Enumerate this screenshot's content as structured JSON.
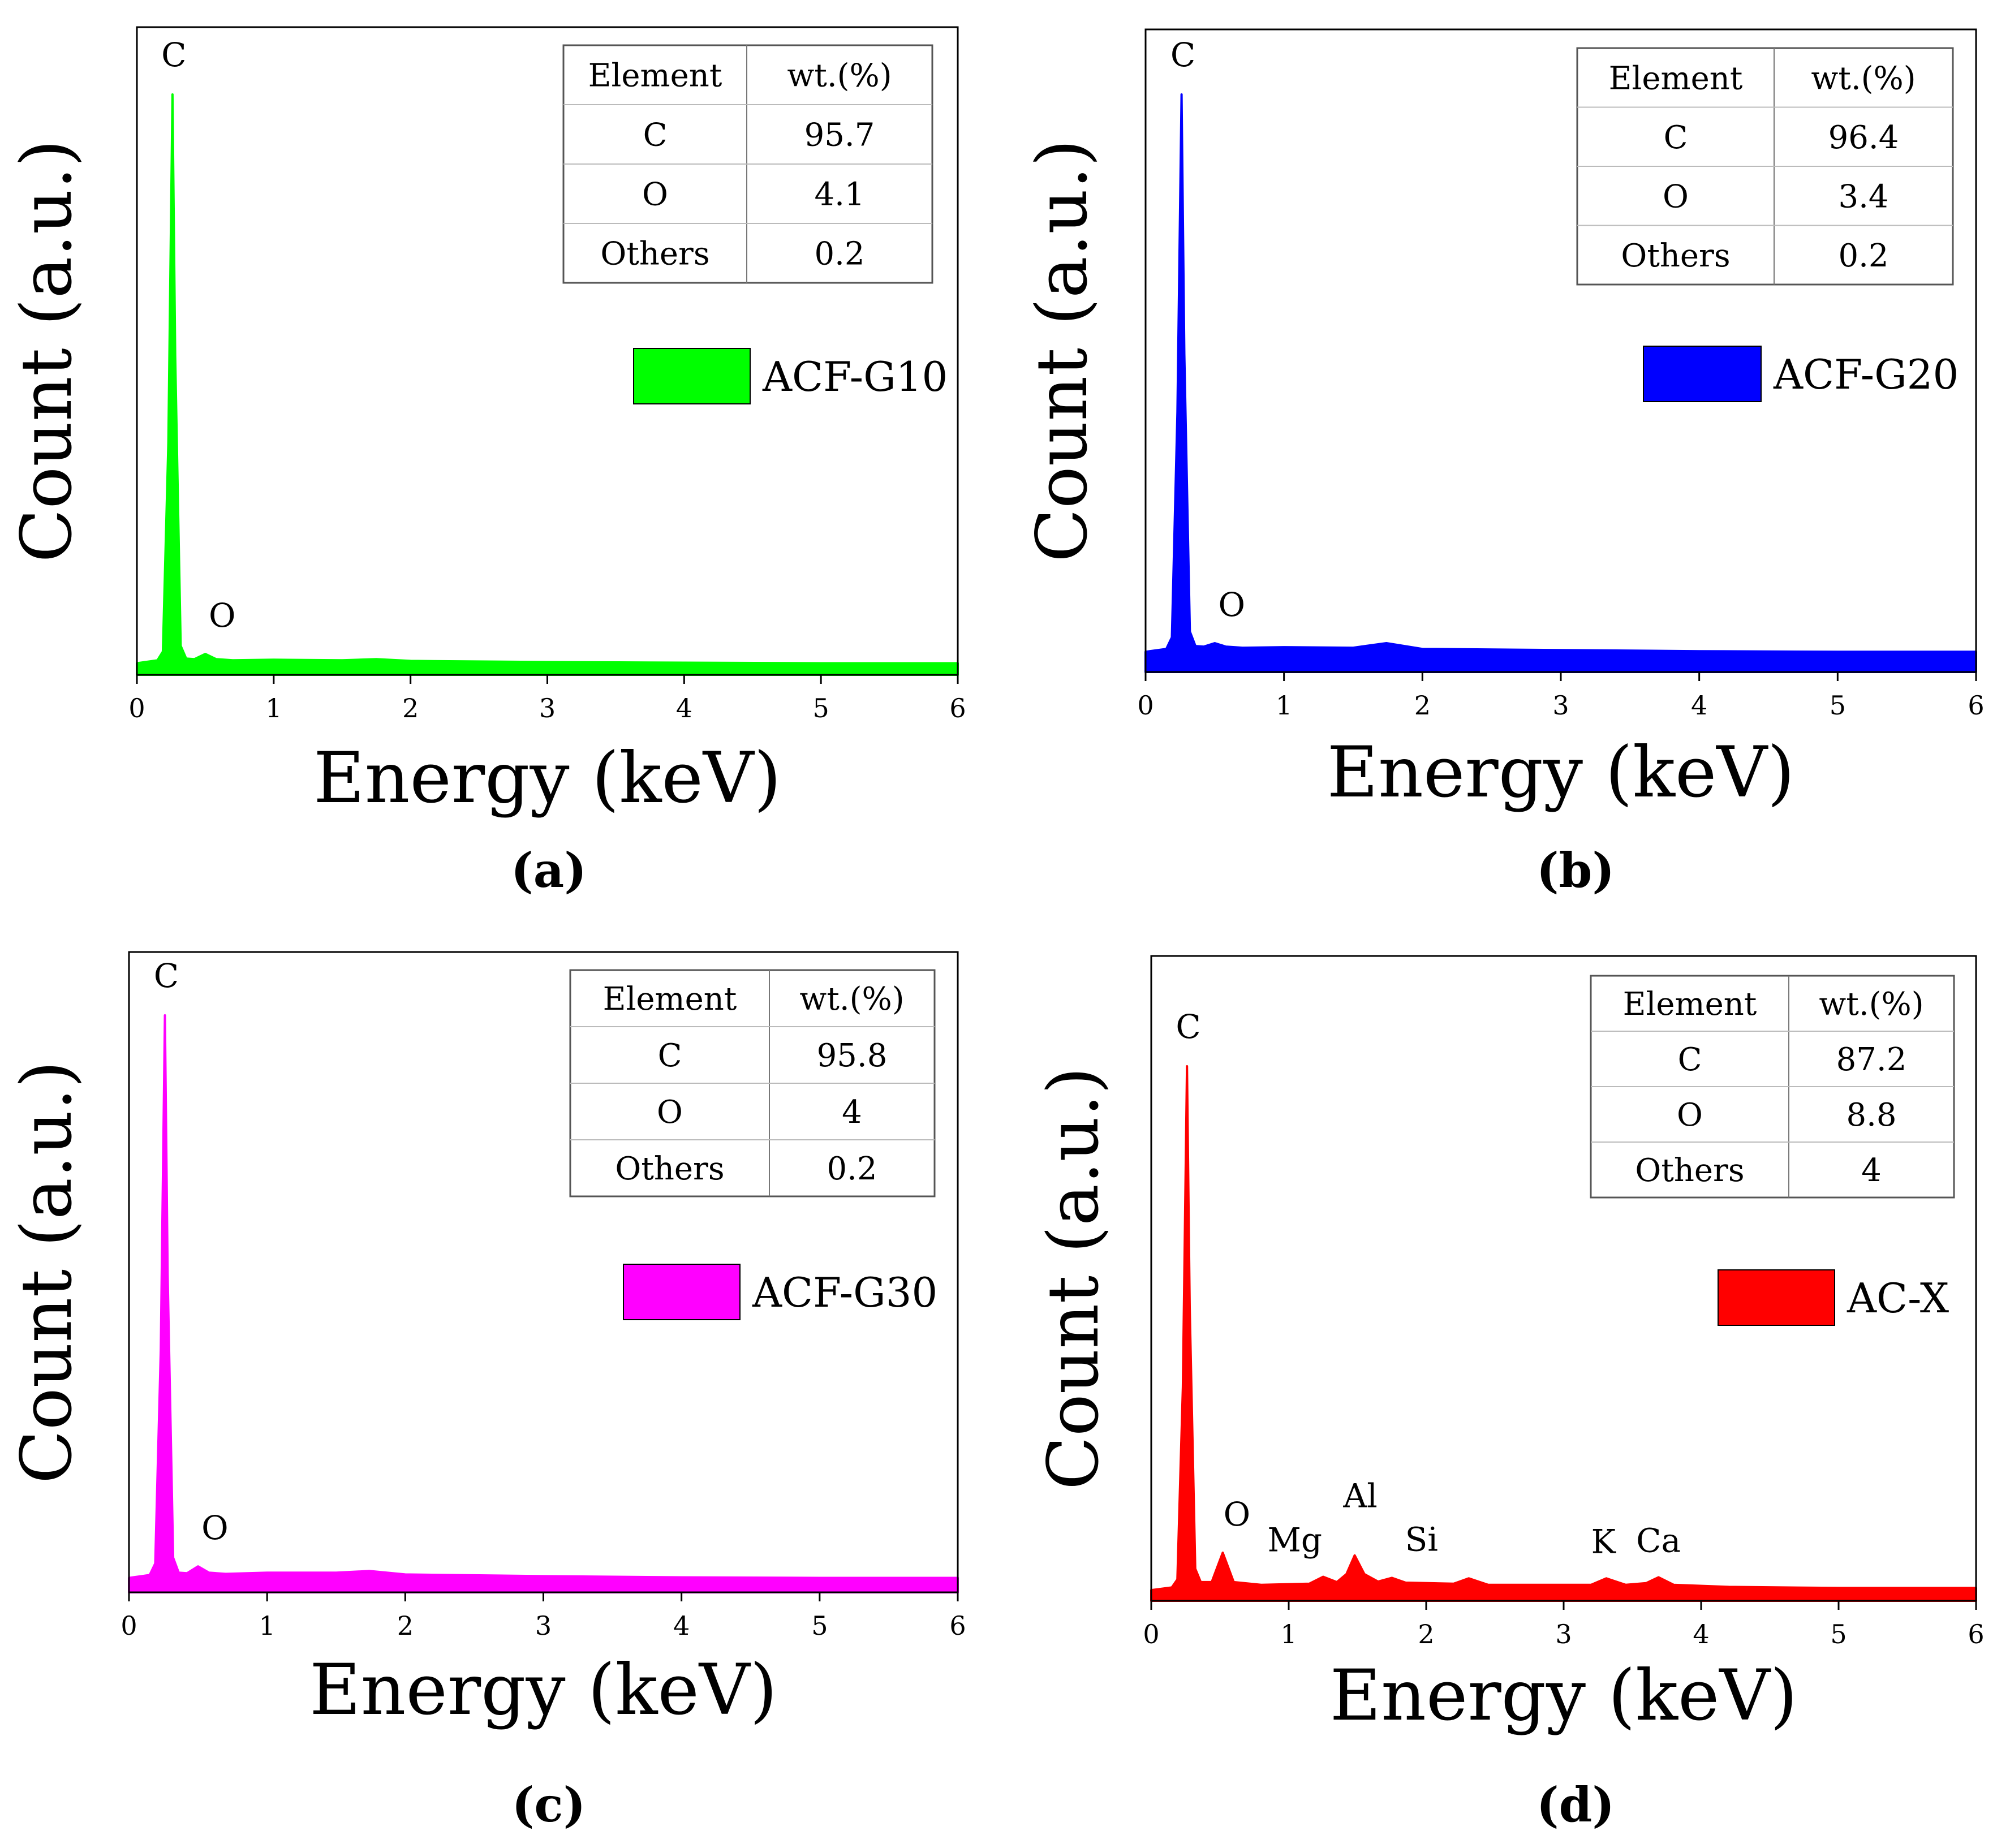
{
  "chart_data": [
    {
      "type": "area",
      "panel_label": "(a)",
      "sample": "ACF-G10",
      "color": "#00ff00",
      "xlabel": "Energy (keV)",
      "ylabel": "Count (a.u.)",
      "xlim": [
        0,
        6
      ],
      "ylim": [
        0,
        1
      ],
      "xticks": [
        "0",
        "1",
        "2",
        "3",
        "4",
        "5",
        "6"
      ],
      "grid": false,
      "legend": "right-middle",
      "spectrum": {
        "x": [
          0,
          0.15,
          0.19,
          0.23,
          0.26,
          0.28,
          0.32,
          0.36,
          0.42,
          0.5,
          0.58,
          0.7,
          1.0,
          1.5,
          1.75,
          2.0,
          3.0,
          4.0,
          5.0,
          6.0
        ],
        "y": [
          0.02,
          0.025,
          0.04,
          0.4,
          1.0,
          0.55,
          0.05,
          0.028,
          0.027,
          0.036,
          0.027,
          0.025,
          0.026,
          0.025,
          0.027,
          0.024,
          0.022,
          0.021,
          0.02,
          0.02
        ]
      },
      "peaks": [
        {
          "label": "C",
          "x": 0.27,
          "y": 1.0
        },
        {
          "label": "O",
          "x": 0.52,
          "y": 0.036
        }
      ],
      "table": {
        "headers": [
          "Element",
          "wt.(%)"
        ],
        "rows": [
          [
            "C",
            "95.7"
          ],
          [
            "O",
            "4.1"
          ],
          [
            "Others",
            "0.2"
          ]
        ]
      }
    },
    {
      "type": "area",
      "panel_label": "(b)",
      "sample": "ACF-G20",
      "color": "#0000ff",
      "xlabel": "Energy (keV)",
      "ylabel": "Count (a.u.)",
      "xlim": [
        0,
        6
      ],
      "ylim": [
        0,
        1
      ],
      "xticks": [
        "0",
        "1",
        "2",
        "3",
        "4",
        "5",
        "6"
      ],
      "grid": false,
      "legend": "right-middle",
      "spectrum": {
        "x": [
          0,
          0.15,
          0.19,
          0.23,
          0.26,
          0.28,
          0.32,
          0.36,
          0.42,
          0.5,
          0.58,
          0.7,
          1.0,
          1.5,
          1.74,
          2.0,
          3.0,
          4.0,
          5.0,
          6.0
        ],
        "y": [
          0.035,
          0.04,
          0.06,
          0.45,
          1.0,
          0.55,
          0.07,
          0.045,
          0.044,
          0.05,
          0.044,
          0.042,
          0.043,
          0.042,
          0.05,
          0.04,
          0.038,
          0.036,
          0.035,
          0.035
        ]
      },
      "peaks": [
        {
          "label": "C",
          "x": 0.27,
          "y": 1.0
        },
        {
          "label": "O",
          "x": 0.52,
          "y": 0.05
        }
      ],
      "table": {
        "headers": [
          "Element",
          "wt.(%)"
        ],
        "rows": [
          [
            "C",
            "96.4"
          ],
          [
            "O",
            "3.4"
          ],
          [
            "Others",
            "0.2"
          ]
        ]
      }
    },
    {
      "type": "area",
      "panel_label": "(c)",
      "sample": "ACF-G30",
      "color": "#ff00ff",
      "xlabel": "Energy (keV)",
      "ylabel": "Count (a.u.)",
      "xlim": [
        0,
        6
      ],
      "ylim": [
        0,
        1
      ],
      "xticks": [
        "0",
        "1",
        "2",
        "3",
        "4",
        "5",
        "6"
      ],
      "grid": false,
      "legend": "right-middle",
      "spectrum": {
        "x": [
          0,
          0.15,
          0.19,
          0.23,
          0.26,
          0.28,
          0.32,
          0.36,
          0.42,
          0.5,
          0.58,
          0.7,
          1.0,
          1.5,
          1.74,
          2.0,
          3.0,
          4.0,
          5.0,
          6.0
        ],
        "y": [
          0.025,
          0.03,
          0.05,
          0.42,
          1.0,
          0.55,
          0.06,
          0.034,
          0.033,
          0.045,
          0.034,
          0.032,
          0.034,
          0.034,
          0.037,
          0.031,
          0.028,
          0.026,
          0.025,
          0.025
        ]
      },
      "peaks": [
        {
          "label": "C",
          "x": 0.27,
          "y": 1.0
        },
        {
          "label": "O",
          "x": 0.52,
          "y": 0.045
        }
      ],
      "table": {
        "headers": [
          "Element",
          "wt.(%)"
        ],
        "rows": [
          [
            "C",
            "95.8"
          ],
          [
            "O",
            "4"
          ],
          [
            "Others",
            "0.2"
          ]
        ]
      }
    },
    {
      "type": "area",
      "panel_label": "(d)",
      "sample": "AC-X",
      "color": "#ff0000",
      "xlabel": "Energy (keV)",
      "ylabel": "Count (a.u.)",
      "xlim": [
        0,
        6
      ],
      "ylim": [
        0,
        1
      ],
      "xticks": [
        "0",
        "1",
        "2",
        "3",
        "4",
        "5",
        "6"
      ],
      "grid": false,
      "legend": "right-middle",
      "spectrum": {
        "x": [
          0,
          0.15,
          0.19,
          0.23,
          0.26,
          0.28,
          0.32,
          0.36,
          0.44,
          0.52,
          0.6,
          0.8,
          1.15,
          1.25,
          1.35,
          1.42,
          1.48,
          1.55,
          1.65,
          1.75,
          1.85,
          2.2,
          2.31,
          2.45,
          3.2,
          3.31,
          3.45,
          3.6,
          3.69,
          3.8,
          4.2,
          5.0,
          6.0
        ],
        "y": [
          0.02,
          0.025,
          0.04,
          0.4,
          1.0,
          0.55,
          0.06,
          0.035,
          0.035,
          0.09,
          0.035,
          0.03,
          0.032,
          0.045,
          0.035,
          0.05,
          0.085,
          0.05,
          0.036,
          0.043,
          0.034,
          0.032,
          0.042,
          0.03,
          0.03,
          0.042,
          0.03,
          0.033,
          0.044,
          0.03,
          0.026,
          0.024,
          0.024
        ]
      },
      "peaks": [
        {
          "label": "C",
          "x": 0.27,
          "y": 1.0
        },
        {
          "label": "O",
          "x": 0.52,
          "y": 0.09
        },
        {
          "label": "Mg",
          "x": 1.25,
          "y": 0.045
        },
        {
          "label": "Al",
          "x": 1.48,
          "y": 0.085
        },
        {
          "label": "Si",
          "x": 1.74,
          "y": 0.043
        },
        {
          "label": "K",
          "x": 3.31,
          "y": 0.042
        },
        {
          "label": "Ca",
          "x": 3.69,
          "y": 0.044
        }
      ],
      "table": {
        "headers": [
          "Element",
          "wt.(%)"
        ],
        "rows": [
          [
            "C",
            "87.2"
          ],
          [
            "O",
            "8.8"
          ],
          [
            "Others",
            "4"
          ]
        ]
      }
    }
  ]
}
